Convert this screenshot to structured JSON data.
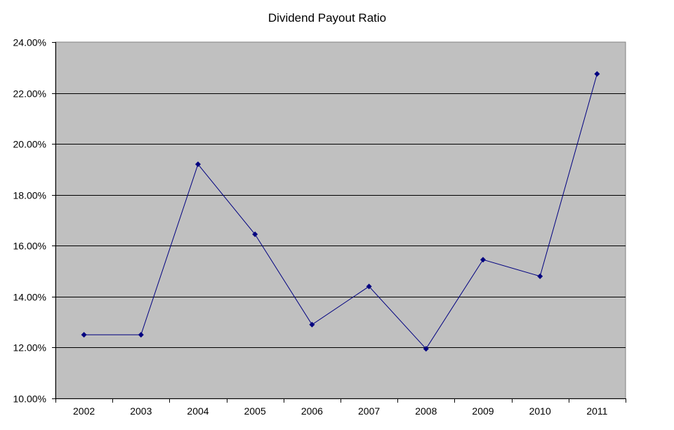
{
  "chart_data": {
    "type": "line",
    "title": "Dividend Payout Ratio",
    "xlabel": "",
    "ylabel": "",
    "categories": [
      "2002",
      "2003",
      "2004",
      "2005",
      "2006",
      "2007",
      "2008",
      "2009",
      "2010",
      "2011"
    ],
    "series": [
      {
        "values": [
          12.5,
          12.5,
          19.2,
          16.45,
          12.9,
          14.4,
          11.95,
          15.45,
          14.8,
          22.75
        ],
        "color": "#000080",
        "marker": "diamond"
      }
    ],
    "ylim": [
      10,
      24
    ],
    "yticks": [
      10,
      12,
      14,
      16,
      18,
      20,
      22,
      24
    ],
    "ytick_labels": [
      "10.00%",
      "12.00%",
      "14.00%",
      "16.00%",
      "18.00%",
      "20.00%",
      "22.00%",
      "24.00%"
    ],
    "grid": true,
    "legend": "none",
    "plot_background": "#c0c0c0",
    "gridline_color": "#000000"
  }
}
